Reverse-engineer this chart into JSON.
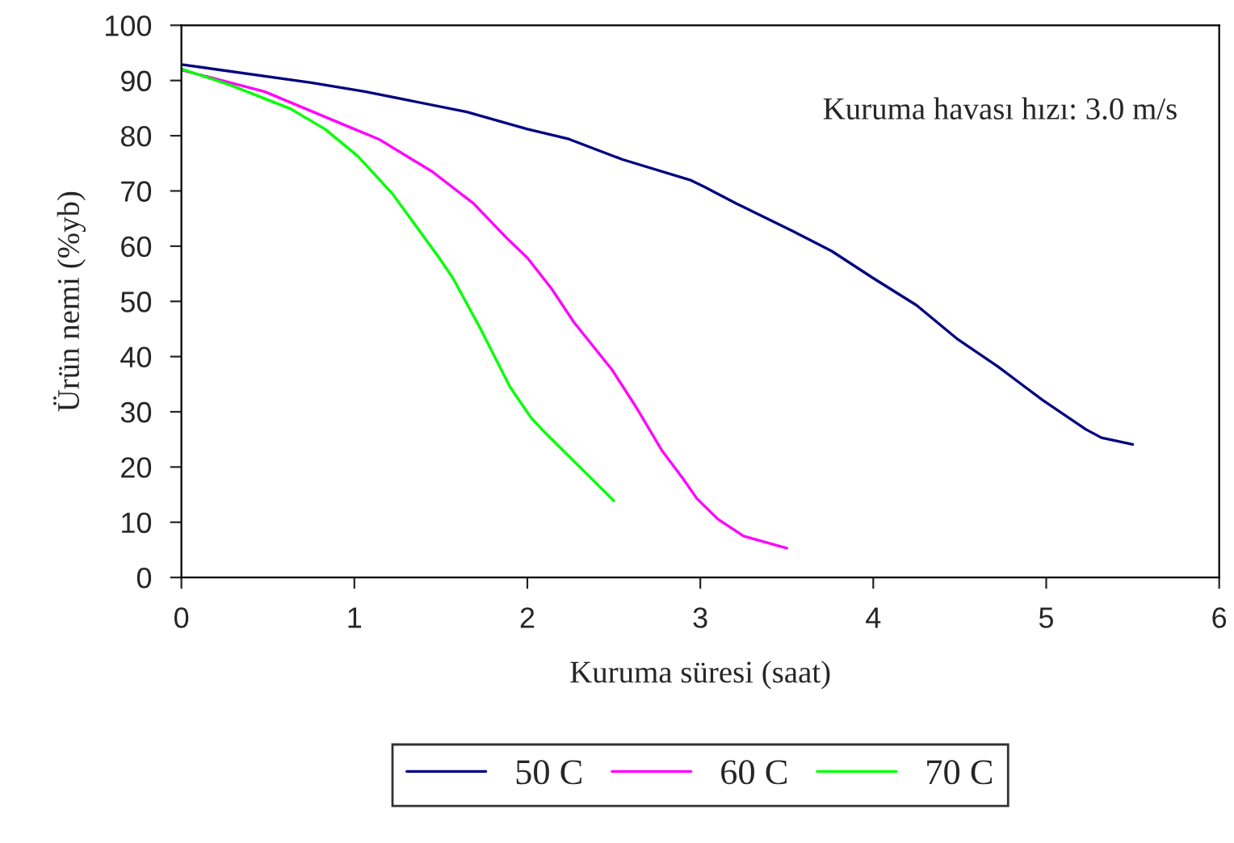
{
  "chart_data": {
    "type": "line",
    "xlabel": "Kuruma süresi (saat)",
    "ylabel": "Ürün nemi (%yb)",
    "annotations": [
      "Kuruma havası hızı: 3.0 m/s"
    ],
    "xlim": [
      0,
      6
    ],
    "xticks": [
      0,
      1,
      2,
      3,
      4,
      5,
      6
    ],
    "ylim": [
      0,
      100
    ],
    "yticks": [
      0,
      10,
      20,
      30,
      40,
      50,
      60,
      70,
      80,
      90,
      100
    ],
    "grid": false,
    "legend": "bottom",
    "marker": "none",
    "line_style": "solid",
    "series": [
      {
        "name": "50 C",
        "color": "#000080",
        "x": [
          0,
          0.75,
          1.06,
          1.65,
          2.0,
          2.24,
          2.55,
          2.94,
          3.02,
          3.21,
          3.53,
          3.76,
          4.0,
          4.25,
          4.49,
          4.72,
          4.98,
          5.23,
          5.32,
          5.5
        ],
        "values": [
          92.9,
          89.6,
          88,
          84.3,
          81.2,
          79.4,
          75.7,
          72,
          70.8,
          67.7,
          62.8,
          59.1,
          54.2,
          49.3,
          43.1,
          38.2,
          32.1,
          26.8,
          25.3,
          24.1
        ]
      },
      {
        "name": "60 C",
        "color": "#ff00ff",
        "x": [
          0,
          0.48,
          1.0,
          1.14,
          1.45,
          1.69,
          1.88,
          2.0,
          2.14,
          2.27,
          2.49,
          2.63,
          2.78,
          2.9,
          2.98,
          3.1,
          3.25,
          3.5
        ],
        "values": [
          91.9,
          88,
          81.2,
          79.4,
          73.5,
          67.7,
          61.5,
          57.9,
          52.3,
          46.2,
          37.6,
          30.8,
          22.9,
          17.9,
          14.3,
          10.6,
          7.5,
          5.3
        ]
      },
      {
        "name": "70 C",
        "color": "#00ff00",
        "x": [
          0,
          0.28,
          0.63,
          0.83,
          1.02,
          1.22,
          1.49,
          1.57,
          1.73,
          1.9,
          2.02,
          2.1,
          2.5
        ],
        "values": [
          92.1,
          89.2,
          84.9,
          81.2,
          76.3,
          69.5,
          57.9,
          54.2,
          45,
          34.5,
          29,
          26.3,
          13.9
        ]
      }
    ]
  }
}
